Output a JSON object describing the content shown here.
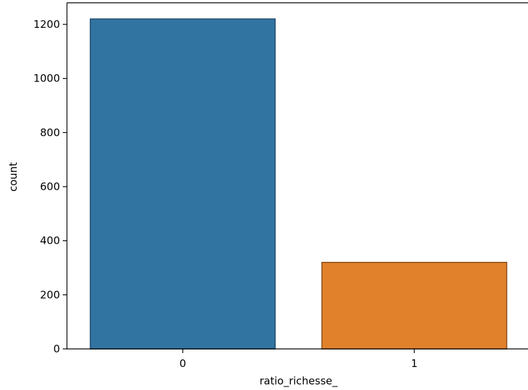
{
  "chart_data": {
    "type": "bar",
    "categories": [
      "0",
      "1"
    ],
    "values": [
      1220,
      320
    ],
    "title": "",
    "xlabel": "ratio_richesse_",
    "ylabel": "count",
    "ylim": [
      0,
      1280
    ],
    "yticks": [
      0,
      200,
      400,
      600,
      800,
      1000,
      1200
    ],
    "grid": false,
    "colors": [
      "#3274a1",
      "#e1812c"
    ],
    "edge_colors": [
      "#1f4a6b",
      "#8a4e1a"
    ]
  }
}
